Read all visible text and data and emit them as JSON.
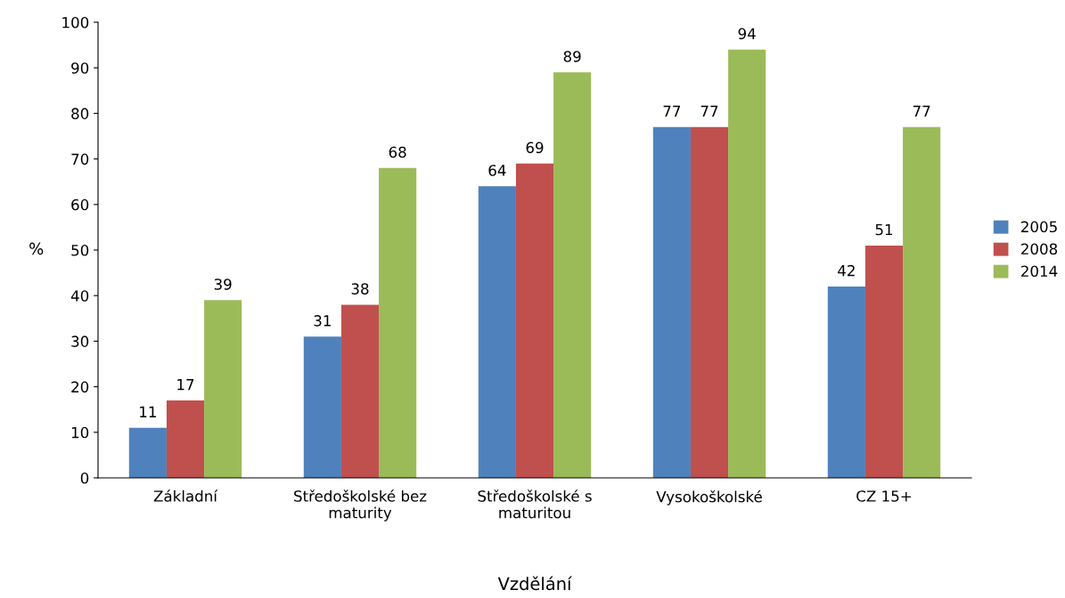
{
  "chart_data": {
    "type": "bar",
    "xlabel": "Vzdělání",
    "ylabel": "%",
    "categories": [
      "Základní",
      "Středoškolské bez\nmaturity",
      "Středoškolské s\nmaturitou",
      "Vysokoškolské",
      "CZ 15+"
    ],
    "series": [
      {
        "name": "2005",
        "color": "#4f81bd",
        "values": [
          11,
          31,
          64,
          77,
          42
        ]
      },
      {
        "name": "2008",
        "color": "#c0504d",
        "values": [
          17,
          38,
          69,
          77,
          51
        ]
      },
      {
        "name": "2014",
        "color": "#9bbb59",
        "values": [
          39,
          68,
          89,
          94,
          77
        ]
      }
    ],
    "ylim": [
      0,
      100
    ],
    "yticks": [
      0,
      10,
      20,
      30,
      40,
      50,
      60,
      70,
      80,
      90,
      100
    ],
    "grid": false,
    "legend": "right",
    "data_labels": true
  }
}
